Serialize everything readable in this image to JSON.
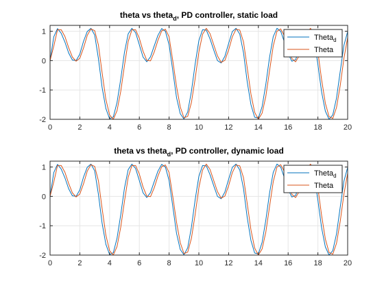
{
  "chart_data": [
    {
      "type": "line",
      "title": "theta vs theta",
      "title_subscript": "d",
      "title_suffix": ", PD controller, static load",
      "xlim": [
        0,
        20
      ],
      "ylim": [
        -2,
        1.2
      ],
      "xticks": [
        0,
        2,
        4,
        6,
        8,
        10,
        12,
        14,
        16,
        18,
        20
      ],
      "yticks": [
        -2,
        -1,
        0,
        1
      ],
      "grid": true,
      "legend_position": "top-right",
      "series": [
        {
          "name": "Theta",
          "name_subscript": "d",
          "color": "#0072BD",
          "x": [
            0.0,
            0.25,
            0.5,
            0.75,
            1.0,
            1.25,
            1.5,
            1.75,
            2.0,
            2.25,
            2.5,
            2.75,
            3.0,
            3.25,
            3.5,
            3.75,
            4.0,
            4.25,
            4.5,
            4.75,
            5.0,
            5.25,
            5.5,
            5.75,
            6.0,
            6.25,
            6.5,
            6.75,
            7.0,
            7.25,
            7.5,
            7.75,
            8.0,
            8.25,
            8.5,
            8.75,
            9.0,
            9.25,
            9.5,
            9.75,
            10.0,
            10.25,
            10.5,
            10.75,
            11.0,
            11.25,
            11.5,
            11.75,
            12.0,
            12.25,
            12.5,
            12.75,
            13.0,
            13.25,
            13.5,
            13.75,
            14.0,
            14.25,
            14.5,
            14.75,
            15.0,
            15.25,
            15.5,
            15.75,
            16.0,
            16.25,
            16.5,
            16.75,
            17.0,
            17.25,
            17.5,
            17.75,
            18.0,
            18.25,
            18.5,
            18.75,
            19.0,
            19.25,
            19.5,
            19.75,
            20.0
          ],
          "y": [
            0.0,
            0.81,
            1.09,
            0.93,
            0.63,
            0.26,
            0.02,
            -0.0,
            0.22,
            0.66,
            0.99,
            1.1,
            0.87,
            0.07,
            -0.92,
            -1.63,
            -1.98,
            -1.92,
            -1.43,
            -0.63,
            0.28,
            0.91,
            1.1,
            0.95,
            0.54,
            0.12,
            -0.04,
            0.13,
            0.5,
            0.86,
            1.09,
            1.0,
            0.54,
            -0.35,
            -1.26,
            -1.81,
            -1.99,
            -1.75,
            -1.05,
            -0.12,
            0.68,
            1.05,
            1.04,
            0.74,
            0.36,
            0.0,
            -0.08,
            0.15,
            0.58,
            0.99,
            1.1,
            0.9,
            0.27,
            -0.72,
            -1.5,
            -1.93,
            -1.96,
            -1.57,
            -0.81,
            0.11,
            0.82,
            1.1,
            1.0,
            0.63,
            0.23,
            -0.02,
            0.03,
            0.37,
            0.77,
            1.06,
            1.05,
            0.7,
            -0.13,
            -1.07,
            -1.72,
            -2.0,
            -1.85,
            -1.28,
            -0.37,
            0.52,
            0.99
          ]
        },
        {
          "name": "Theta",
          "color": "#D95319",
          "x": [
            0.0,
            0.25,
            0.5,
            0.75,
            1.0,
            1.25,
            1.5,
            1.75,
            2.0,
            2.25,
            2.5,
            2.75,
            3.0,
            3.25,
            3.5,
            3.75,
            4.0,
            4.25,
            4.5,
            4.75,
            5.0,
            5.25,
            5.5,
            5.75,
            6.0,
            6.25,
            6.5,
            6.75,
            7.0,
            7.25,
            7.5,
            7.75,
            8.0,
            8.25,
            8.5,
            8.75,
            9.0,
            9.25,
            9.5,
            9.75,
            10.0,
            10.25,
            10.5,
            10.75,
            11.0,
            11.25,
            11.5,
            11.75,
            12.0,
            12.25,
            12.5,
            12.75,
            13.0,
            13.25,
            13.5,
            13.75,
            14.0,
            14.25,
            14.5,
            14.75,
            15.0,
            15.25,
            15.5,
            15.75,
            16.0,
            16.25,
            16.5,
            16.75,
            17.0,
            17.25,
            17.5,
            17.75,
            18.0,
            18.25,
            18.5,
            18.75,
            19.0,
            19.25,
            19.5,
            19.75,
            20.0
          ],
          "y": [
            0.0,
            0.49,
            1.05,
            1.05,
            0.82,
            0.44,
            0.12,
            -0.02,
            0.08,
            0.43,
            0.86,
            1.08,
            1.02,
            0.53,
            -0.42,
            -1.32,
            -1.85,
            -2.0,
            -1.71,
            -1.05,
            -0.17,
            0.65,
            1.05,
            1.05,
            0.76,
            0.32,
            0.01,
            -0.01,
            0.29,
            0.69,
            1.01,
            1.07,
            0.81,
            -0.01,
            -0.88,
            -1.58,
            -1.95,
            -1.9,
            -1.43,
            -0.62,
            0.29,
            0.9,
            1.1,
            0.92,
            0.54,
            0.16,
            -0.06,
            0.01,
            0.36,
            0.81,
            1.07,
            1.04,
            0.64,
            -0.24,
            -1.14,
            -1.76,
            -2.0,
            -1.79,
            -1.22,
            -0.35,
            0.5,
            1.0,
            1.08,
            0.84,
            0.43,
            0.07,
            -0.04,
            0.17,
            0.57,
            0.94,
            1.1,
            0.91,
            0.29,
            -0.65,
            -1.45,
            -1.91,
            -1.97,
            -1.6,
            -0.85,
            0.08,
            0.79
          ]
        }
      ]
    },
    {
      "type": "line",
      "title": "theta vs theta",
      "title_subscript": "d",
      "title_suffix": ", PD controller, dynamic load",
      "xlim": [
        0,
        20
      ],
      "ylim": [
        -2,
        1.2
      ],
      "xticks": [
        0,
        2,
        4,
        6,
        8,
        10,
        12,
        14,
        16,
        18,
        20
      ],
      "yticks": [
        -2,
        -1,
        0,
        1
      ],
      "grid": true,
      "legend_position": "top-right",
      "series": [
        {
          "name": "Theta",
          "name_subscript": "d",
          "color": "#0072BD",
          "x": [
            0.0,
            0.25,
            0.5,
            0.75,
            1.0,
            1.25,
            1.5,
            1.75,
            2.0,
            2.25,
            2.5,
            2.75,
            3.0,
            3.25,
            3.5,
            3.75,
            4.0,
            4.25,
            4.5,
            4.75,
            5.0,
            5.25,
            5.5,
            5.75,
            6.0,
            6.25,
            6.5,
            6.75,
            7.0,
            7.25,
            7.5,
            7.75,
            8.0,
            8.25,
            8.5,
            8.75,
            9.0,
            9.25,
            9.5,
            9.75,
            10.0,
            10.25,
            10.5,
            10.75,
            11.0,
            11.25,
            11.5,
            11.75,
            12.0,
            12.25,
            12.5,
            12.75,
            13.0,
            13.25,
            13.5,
            13.75,
            14.0,
            14.25,
            14.5,
            14.75,
            15.0,
            15.25,
            15.5,
            15.75,
            16.0,
            16.25,
            16.5,
            16.75,
            17.0,
            17.25,
            17.5,
            17.75,
            18.0,
            18.25,
            18.5,
            18.75,
            19.0,
            19.25,
            19.5,
            19.75,
            20.0
          ],
          "y": [
            0.0,
            0.81,
            1.09,
            0.93,
            0.63,
            0.26,
            0.02,
            -0.0,
            0.22,
            0.66,
            0.99,
            1.1,
            0.87,
            0.07,
            -0.92,
            -1.63,
            -1.98,
            -1.92,
            -1.43,
            -0.63,
            0.28,
            0.91,
            1.1,
            0.95,
            0.54,
            0.12,
            -0.04,
            0.13,
            0.5,
            0.86,
            1.09,
            1.0,
            0.54,
            -0.35,
            -1.26,
            -1.81,
            -1.99,
            -1.75,
            -1.05,
            -0.12,
            0.68,
            1.05,
            1.04,
            0.74,
            0.36,
            0.0,
            -0.08,
            0.15,
            0.58,
            0.99,
            1.1,
            0.9,
            0.27,
            -0.72,
            -1.5,
            -1.93,
            -1.96,
            -1.57,
            -0.81,
            0.11,
            0.82,
            1.1,
            1.0,
            0.63,
            0.23,
            -0.02,
            0.03,
            0.37,
            0.77,
            1.06,
            1.05,
            0.7,
            -0.13,
            -1.07,
            -1.72,
            -2.0,
            -1.85,
            -1.28,
            -0.37,
            0.52,
            0.99
          ]
        },
        {
          "name": "Theta",
          "color": "#D95319",
          "x": [
            0.0,
            0.25,
            0.5,
            0.75,
            1.0,
            1.25,
            1.5,
            1.75,
            2.0,
            2.25,
            2.5,
            2.75,
            3.0,
            3.25,
            3.5,
            3.75,
            4.0,
            4.25,
            4.5,
            4.75,
            5.0,
            5.25,
            5.5,
            5.75,
            6.0,
            6.25,
            6.5,
            6.75,
            7.0,
            7.25,
            7.5,
            7.75,
            8.0,
            8.25,
            8.5,
            8.75,
            9.0,
            9.25,
            9.5,
            9.75,
            10.0,
            10.25,
            10.5,
            10.75,
            11.0,
            11.25,
            11.5,
            11.75,
            12.0,
            12.25,
            12.5,
            12.75,
            13.0,
            13.25,
            13.5,
            13.75,
            14.0,
            14.25,
            14.5,
            14.75,
            15.0,
            15.25,
            15.5,
            15.75,
            16.0,
            16.25,
            16.5,
            16.75,
            17.0,
            17.25,
            17.5,
            17.75,
            18.0,
            18.25,
            18.5,
            18.75,
            19.0,
            19.25,
            19.5,
            19.75,
            20.0
          ],
          "y": [
            0.0,
            0.49,
            1.05,
            1.05,
            0.82,
            0.44,
            0.12,
            -0.02,
            0.08,
            0.43,
            0.86,
            1.08,
            1.02,
            0.53,
            -0.42,
            -1.32,
            -1.85,
            -2.0,
            -1.71,
            -1.05,
            -0.17,
            0.65,
            1.05,
            1.05,
            0.76,
            0.32,
            0.01,
            -0.01,
            0.29,
            0.69,
            1.01,
            1.07,
            0.81,
            -0.01,
            -0.88,
            -1.58,
            -1.95,
            -1.9,
            -1.43,
            -0.62,
            0.29,
            0.9,
            1.1,
            0.92,
            0.54,
            0.16,
            -0.06,
            0.01,
            0.36,
            0.81,
            1.07,
            1.04,
            0.64,
            -0.24,
            -1.14,
            -1.76,
            -2.0,
            -1.79,
            -1.22,
            -0.35,
            0.5,
            1.0,
            1.08,
            0.84,
            0.43,
            0.07,
            -0.04,
            0.17,
            0.57,
            0.94,
            1.1,
            0.91,
            0.29,
            -0.65,
            -1.45,
            -1.91,
            -1.97,
            -1.6,
            -0.85,
            0.08,
            0.79
          ]
        }
      ]
    }
  ]
}
